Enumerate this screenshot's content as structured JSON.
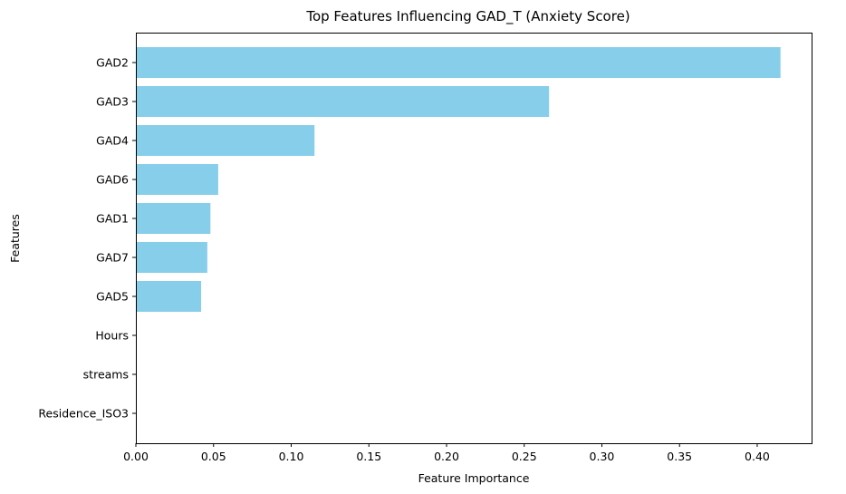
{
  "chart_data": {
    "type": "bar",
    "orientation": "horizontal",
    "title": "Top Features Influencing GAD_T (Anxiety Score)",
    "xlabel": "Feature Importance",
    "ylabel": "Features",
    "categories": [
      "GAD2",
      "GAD3",
      "GAD4",
      "GAD6",
      "GAD1",
      "GAD7",
      "GAD5",
      "Hours",
      "streams",
      "Residence_ISO3"
    ],
    "values": [
      0.415,
      0.266,
      0.115,
      0.053,
      0.048,
      0.046,
      0.042,
      0.0,
      0.0,
      0.0
    ],
    "xlim": [
      0,
      0.435
    ],
    "xticks": [
      0.0,
      0.05,
      0.1,
      0.15,
      0.2,
      0.25,
      0.3,
      0.35,
      0.4
    ],
    "xtick_labels": [
      "0.00",
      "0.05",
      "0.10",
      "0.15",
      "0.20",
      "0.25",
      "0.30",
      "0.35",
      "0.40"
    ],
    "bar_color": "#87ceeb",
    "grid": false,
    "legend": "none"
  }
}
